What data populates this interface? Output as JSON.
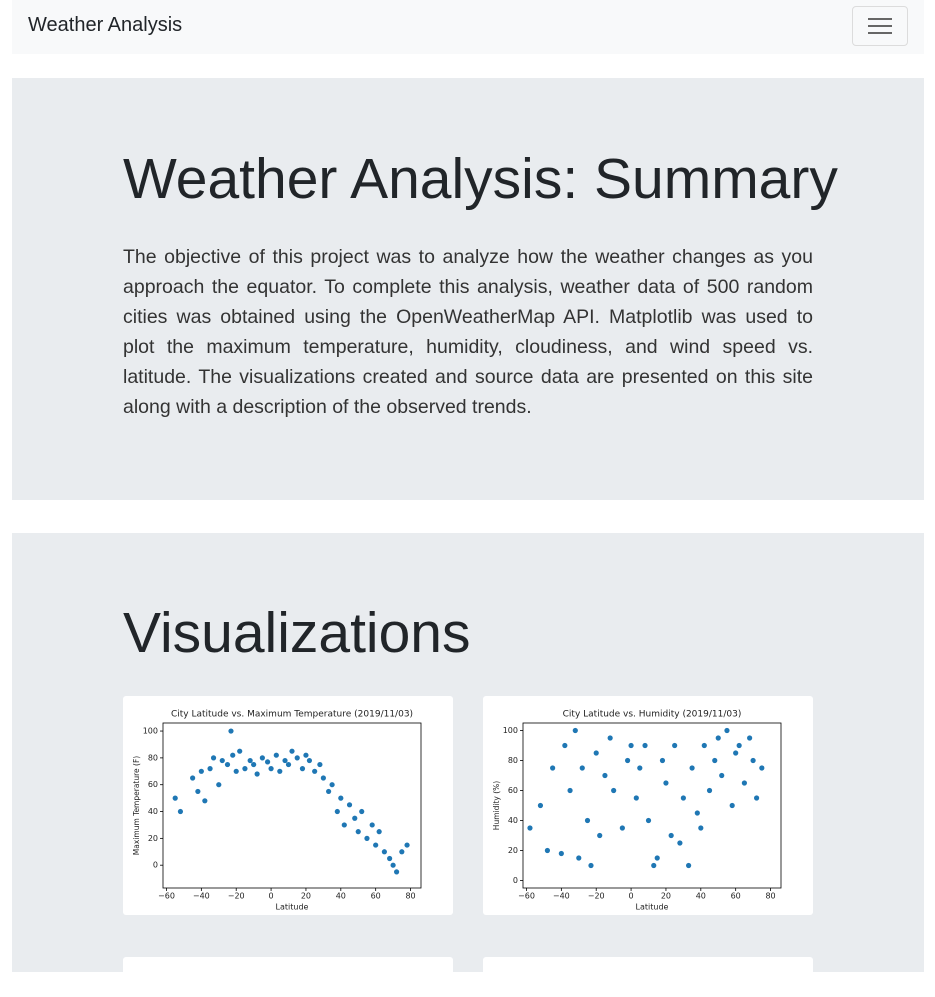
{
  "navbar": {
    "brand": "Weather Analysis"
  },
  "summary": {
    "title": "Weather Analysis: Summary",
    "text": "The objective of this project was to analyze how the weather changes as you approach the equator. To complete this analysis, weather data of 500 random cities was obtained using the OpenWeatherMap API. Matplotlib was used to plot the maximum temperature, humidity, cloudiness, and wind speed vs. latitude. The visualizations created and source data are presented on this site along with a description of the observed trends."
  },
  "visualizations": {
    "title": "Visualizations"
  },
  "chart_data": [
    {
      "type": "scatter",
      "title": "City Latitude vs. Maximum Temperature (2019/11/03)",
      "x_label": "Latitude",
      "y_label": "Maximum Temperature (F)",
      "color": "#1f77b4",
      "xlim": [
        -62,
        86
      ],
      "ylim": [
        -17,
        106
      ],
      "xticks": [
        {
          "value": -60,
          "label": "−60"
        },
        {
          "value": -40,
          "label": "−40"
        },
        {
          "value": -20,
          "label": "−20"
        },
        0,
        20,
        40,
        60,
        80
      ],
      "yticks": [
        0,
        20,
        40,
        60,
        80,
        100
      ],
      "x": [
        -55,
        -52,
        -45,
        -42,
        -40,
        -38,
        -35,
        -33,
        -30,
        -28,
        -25,
        -23,
        -22,
        -20,
        -18,
        -15,
        -12,
        -10,
        -8,
        -5,
        -2,
        0,
        3,
        5,
        8,
        10,
        12,
        15,
        18,
        20,
        22,
        25,
        28,
        30,
        33,
        35,
        38,
        40,
        42,
        45,
        48,
        50,
        52,
        55,
        58,
        60,
        62,
        65,
        68,
        70,
        72,
        75,
        78
      ],
      "y": [
        50,
        40,
        65,
        55,
        70,
        48,
        72,
        80,
        60,
        78,
        75,
        100,
        82,
        70,
        85,
        72,
        78,
        75,
        68,
        80,
        77,
        72,
        82,
        70,
        78,
        75,
        85,
        80,
        72,
        82,
        78,
        70,
        75,
        65,
        55,
        60,
        40,
        50,
        30,
        45,
        35,
        25,
        40,
        20,
        30,
        15,
        25,
        10,
        5,
        0,
        -5,
        10,
        15
      ]
    },
    {
      "type": "scatter",
      "title": "City Latitude vs. Humidity (2019/11/03)",
      "x_label": "Latitude",
      "y_label": "Humidity (%)",
      "color": "#1f77b4",
      "xlim": [
        -62,
        86
      ],
      "ylim": [
        -5,
        105
      ],
      "xticks": [
        {
          "value": -60,
          "label": "−60"
        },
        {
          "value": -40,
          "label": "−40"
        },
        {
          "value": -20,
          "label": "−20"
        },
        0,
        20,
        40,
        60,
        80
      ],
      "yticks": [
        0,
        20,
        40,
        60,
        80,
        100
      ],
      "x": [
        -58,
        -52,
        -48,
        -45,
        -40,
        -38,
        -35,
        -32,
        -30,
        -28,
        -25,
        -23,
        -20,
        -18,
        -15,
        -12,
        -10,
        -5,
        -2,
        0,
        3,
        5,
        8,
        10,
        13,
        15,
        18,
        20,
        23,
        25,
        28,
        30,
        33,
        35,
        38,
        40,
        42,
        45,
        48,
        50,
        52,
        55,
        58,
        60,
        62,
        65,
        68,
        70,
        72,
        75
      ],
      "y": [
        35,
        50,
        20,
        75,
        18,
        90,
        60,
        100,
        15,
        75,
        40,
        10,
        85,
        30,
        70,
        95,
        60,
        35,
        80,
        90,
        55,
        75,
        90,
        40,
        10,
        15,
        80,
        65,
        30,
        90,
        25,
        55,
        10,
        75,
        45,
        35,
        90,
        60,
        80,
        95,
        70,
        100,
        50,
        85,
        90,
        65,
        95,
        80,
        55,
        75
      ]
    }
  ]
}
